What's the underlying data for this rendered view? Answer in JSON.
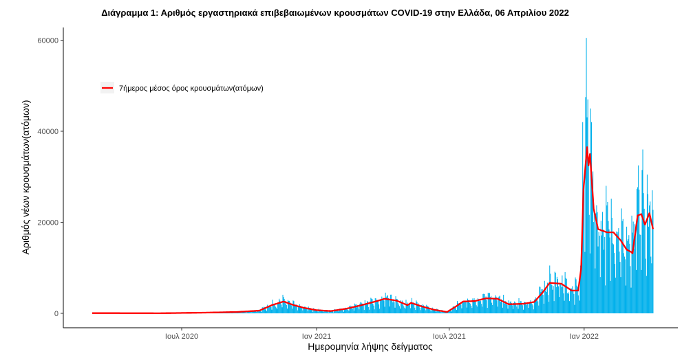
{
  "chart_data": {
    "type": "bar",
    "title": "Διάγραμμα 1: Αριθμός εργαστηριακά επιβεβαιωμένων κρουσμάτων COVID-19 στην Ελλάδα, 06 Απριλίου 2022",
    "xlabel": "Ημερομηνία λήψης δείγματος",
    "ylabel": "Αριθμός νέων κρουσμάτων(ατόμων)",
    "ylim": [
      0,
      65000
    ],
    "xlim": [
      "2020-02-01",
      "2022-04-30"
    ],
    "y_ticks": [
      0,
      20000,
      40000,
      60000
    ],
    "y_tick_labels": [
      "0",
      "20000",
      "40000",
      "60000"
    ],
    "x_ticks": [
      "2020-07-01",
      "2021-01-01",
      "2021-07-01",
      "2022-01-01"
    ],
    "x_tick_labels": [
      "Ιουλ 2020",
      "Ιαν 2021",
      "Ιουλ 2021",
      "Ιαν 2022"
    ],
    "grid": false,
    "legend": {
      "position": "top-left",
      "entries": [
        "7ήμερος μέσος όρος κρουσμάτων(ατόμων)"
      ]
    },
    "bar_color": "#00b0eb",
    "line_color": "#ff0000",
    "date_range": [
      "2020-03-01",
      "2022-04-05"
    ],
    "seven_day_average": [
      [
        "2020-03-01",
        50
      ],
      [
        "2020-06-01",
        20
      ],
      [
        "2020-08-01",
        150
      ],
      [
        "2020-09-15",
        300
      ],
      [
        "2020-10-15",
        600
      ],
      [
        "2020-11-01",
        1800
      ],
      [
        "2020-11-17",
        2600
      ],
      [
        "2020-12-01",
        1800
      ],
      [
        "2020-12-15",
        1200
      ],
      [
        "2021-01-01",
        700
      ],
      [
        "2021-01-20",
        500
      ],
      [
        "2021-02-10",
        1000
      ],
      [
        "2021-03-01",
        1700
      ],
      [
        "2021-03-20",
        2500
      ],
      [
        "2021-04-04",
        3200
      ],
      [
        "2021-04-20",
        2800
      ],
      [
        "2021-05-05",
        1800
      ],
      [
        "2021-05-10",
        2300
      ],
      [
        "2021-05-25",
        1500
      ],
      [
        "2021-06-10",
        800
      ],
      [
        "2021-06-28",
        300
      ],
      [
        "2021-07-10",
        1500
      ],
      [
        "2021-07-20",
        2600
      ],
      [
        "2021-08-05",
        2700
      ],
      [
        "2021-08-20",
        3300
      ],
      [
        "2021-09-05",
        3200
      ],
      [
        "2021-09-20",
        2000
      ],
      [
        "2021-10-10",
        2100
      ],
      [
        "2021-10-25",
        2500
      ],
      [
        "2021-11-05",
        4500
      ],
      [
        "2021-11-15",
        6700
      ],
      [
        "2021-12-01",
        6500
      ],
      [
        "2021-12-15",
        5000
      ],
      [
        "2021-12-24",
        5000
      ],
      [
        "2021-12-28",
        10000
      ],
      [
        "2021-12-31",
        27000
      ],
      [
        "2022-01-05",
        36500
      ],
      [
        "2022-01-07",
        32500
      ],
      [
        "2022-01-09",
        35000
      ],
      [
        "2022-01-14",
        23000
      ],
      [
        "2022-01-20",
        18500
      ],
      [
        "2022-02-01",
        17800
      ],
      [
        "2022-02-10",
        17800
      ],
      [
        "2022-02-20",
        16000
      ],
      [
        "2022-02-28",
        14000
      ],
      [
        "2022-03-06",
        13500
      ],
      [
        "2022-03-08",
        13200
      ],
      [
        "2022-03-15",
        21500
      ],
      [
        "2022-03-20",
        21800
      ],
      [
        "2022-03-25",
        19500
      ],
      [
        "2022-03-31",
        22000
      ],
      [
        "2022-04-05",
        18500
      ]
    ],
    "weekday_factors_sun_to_sat": [
      0.45,
      1.3,
      1.2,
      1.15,
      1.05,
      0.95,
      0.8
    ],
    "daily_spikes": [
      [
        "2022-01-04",
        60500
      ],
      [
        "2022-01-03",
        47500
      ],
      [
        "2022-01-06",
        47000
      ],
      [
        "2022-01-10",
        45000
      ],
      [
        "2022-01-11",
        42000
      ],
      [
        "2021-12-30",
        42000
      ],
      [
        "2022-03-22",
        36000
      ],
      [
        "2022-03-16",
        32500
      ],
      [
        "2021-11-15",
        10500
      ]
    ]
  }
}
